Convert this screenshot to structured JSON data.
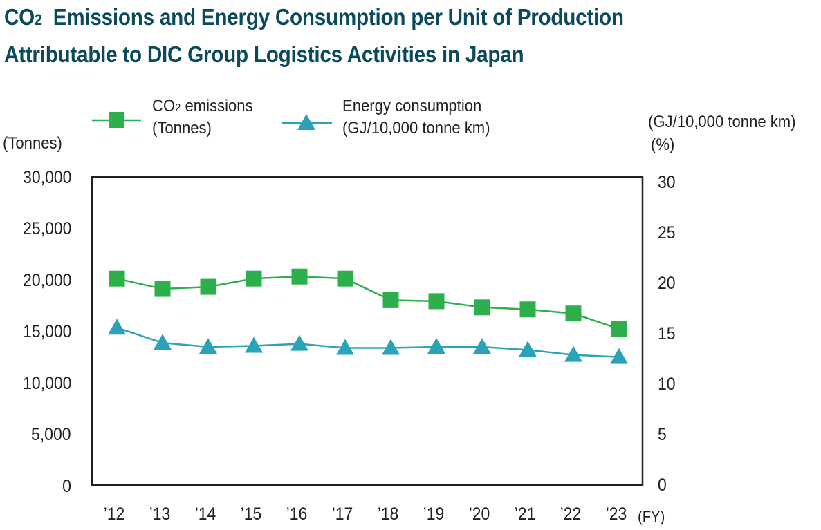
{
  "title": {
    "line1_pre": "CO",
    "line1_sub": "2",
    "line1_post": "  Emissions and Energy Consumption per Unit of Production",
    "line2": "Attributable to DIC Group Logistics Activities in Japan"
  },
  "legend": {
    "co2_pre": "CO",
    "co2_sub": "2",
    "co2_post": " emissions",
    "co2_unit": "(Tonnes)",
    "energy_line1": "Energy consumption",
    "energy_line2": "(GJ/10,000 tonne km)"
  },
  "axes": {
    "left_unit": "(Tonnes)",
    "right_unit_line1": "(GJ/10,000 tonne km)",
    "right_unit_line2": "(%)",
    "x_unit": "(FY)"
  },
  "colors": {
    "co2": "#2db04b",
    "energy": "#2aa3b8",
    "frame": "#231f20"
  },
  "chart_data": {
    "type": "line",
    "categories": [
      "’12",
      "’13",
      "’14",
      "’15",
      "’16",
      "’17",
      "’18",
      "’19",
      "’20",
      "’21",
      "’22",
      "’23"
    ],
    "y_left": {
      "label": "(Tonnes)",
      "ylim": [
        0,
        30000
      ],
      "ticks": [
        "0",
        "5,000",
        "10,000",
        "15,000",
        "20,000",
        "25,000",
        "30,000"
      ]
    },
    "y_right": {
      "label": "(GJ/10,000 tonne km) (%)",
      "ylim": [
        0,
        30
      ],
      "ticks": [
        "0",
        "5",
        "10",
        "15",
        "20",
        "25",
        "30"
      ]
    },
    "series": [
      {
        "name": "CO2 emissions (Tonnes)",
        "axis": "left",
        "marker": "square",
        "values": [
          20100,
          19100,
          19300,
          20100,
          20300,
          20100,
          18000,
          17900,
          17300,
          17100,
          16700,
          15200
        ]
      },
      {
        "name": "Energy consumption (GJ/10,000 tonne km)",
        "axis": "right",
        "marker": "triangle",
        "values": [
          15.6,
          14.1,
          13.7,
          13.8,
          14.0,
          13.6,
          13.6,
          13.7,
          13.7,
          13.4,
          12.9,
          12.7
        ]
      }
    ],
    "grid": false,
    "legend_position": "top"
  }
}
